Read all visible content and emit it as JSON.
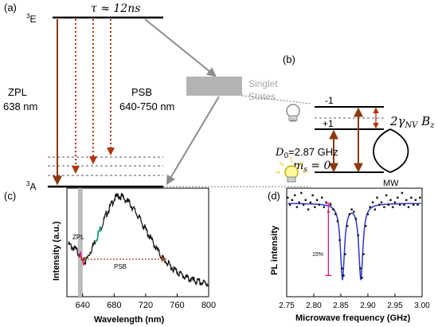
{
  "panel_a": {
    "label": "(a)",
    "level_excited": "3E",
    "level_ground": "3A",
    "tau": "τ ≈ 12ns",
    "zpl_title": "ZPL",
    "zpl_value": "638 nm",
    "psb_title": "PSB",
    "psb_value": "640-750 nm",
    "singlet_line1": "Singlet",
    "singlet_line2": "States"
  },
  "panel_b": {
    "label": "(b)",
    "ms_minus": "-1",
    "ms_plus": "+1",
    "zeeman": "2γNV Bz",
    "d0": "D0=2.87 GHz",
    "ms0": "ms = 0",
    "mw": "MW"
  },
  "panel_c": {
    "label": "(c)",
    "ylabel": "Intensity (a.u.)",
    "xlabel": "Wavelength (nm)",
    "zpl_tag": "ZPL",
    "psb_tag": "PSB",
    "chart_data": {
      "type": "line",
      "x_ticks": [
        640,
        680,
        720,
        760,
        800
      ],
      "xlim": [
        620,
        800
      ],
      "ylabel": "Intensity (a.u.)",
      "xlabel": "Wavelength (nm)",
      "x": [
        622,
        630,
        636,
        638,
        640,
        645,
        650,
        660,
        670,
        680,
        685,
        690,
        700,
        710,
        720,
        730,
        740,
        750,
        760,
        770,
        780,
        790,
        800
      ],
      "y": [
        0.48,
        0.44,
        0.4,
        0.36,
        0.3,
        0.34,
        0.42,
        0.58,
        0.76,
        0.9,
        0.93,
        0.92,
        0.86,
        0.75,
        0.62,
        0.49,
        0.37,
        0.29,
        0.23,
        0.18,
        0.15,
        0.13,
        0.12
      ]
    }
  },
  "panel_d": {
    "label": "(d)",
    "ylabel": "PL intensity",
    "xlabel": "Microwave frequency (GHz)",
    "contrast": "15%",
    "chart_data": {
      "type": "scatter",
      "x_ticks": [
        "2.75",
        "2.80",
        "2.85",
        "2.90",
        "2.95",
        "3.00"
      ],
      "xlim": [
        2.75,
        3.0
      ],
      "ylim": [
        0.8,
        1.03
      ],
      "ylabel": "PL intensity",
      "xlabel": "Microwave frequency (GHz)",
      "dips": [
        2.853,
        2.887
      ],
      "points": [
        [
          2.752,
          1.01
        ],
        [
          2.756,
          0.995
        ],
        [
          2.76,
          1.005
        ],
        [
          2.765,
          1.015
        ],
        [
          2.769,
          0.99
        ],
        [
          2.773,
          1.0
        ],
        [
          2.777,
          1.02
        ],
        [
          2.781,
          0.995
        ],
        [
          2.785,
          1.005
        ],
        [
          2.79,
          0.985
        ],
        [
          2.794,
          1.0
        ],
        [
          2.798,
          1.015
        ],
        [
          2.802,
          0.99
        ],
        [
          2.806,
          1.005
        ],
        [
          2.81,
          0.995
        ],
        [
          2.815,
          1.01
        ],
        [
          2.819,
          0.99
        ],
        [
          2.823,
          1.0
        ],
        [
          2.827,
          0.98
        ],
        [
          2.831,
          0.995
        ],
        [
          2.836,
          0.985
        ],
        [
          2.84,
          0.975
        ],
        [
          2.844,
          0.96
        ],
        [
          2.848,
          0.92
        ],
        [
          2.852,
          0.86
        ],
        [
          2.855,
          0.845
        ],
        [
          2.858,
          0.89
        ],
        [
          2.862,
          0.95
        ],
        [
          2.866,
          0.975
        ],
        [
          2.87,
          0.985
        ],
        [
          2.874,
          0.98
        ],
        [
          2.878,
          0.965
        ],
        [
          2.882,
          0.93
        ],
        [
          2.886,
          0.86
        ],
        [
          2.889,
          0.84
        ],
        [
          2.892,
          0.89
        ],
        [
          2.896,
          0.95
        ],
        [
          2.9,
          0.975
        ],
        [
          2.904,
          0.99
        ],
        [
          2.909,
          1.0
        ],
        [
          2.913,
          0.985
        ],
        [
          2.917,
          1.01
        ],
        [
          2.921,
          0.995
        ],
        [
          2.925,
          1.0
        ],
        [
          2.93,
          0.99
        ],
        [
          2.934,
          1.015
        ],
        [
          2.938,
          0.995
        ],
        [
          2.942,
          1.005
        ],
        [
          2.946,
          0.99
        ],
        [
          2.95,
          1.0
        ],
        [
          2.955,
          1.01
        ],
        [
          2.959,
          0.995
        ],
        [
          2.963,
          1.02
        ],
        [
          2.967,
          0.995
        ],
        [
          2.971,
          1.005
        ],
        [
          2.975,
          0.99
        ],
        [
          2.98,
          1.01
        ],
        [
          2.984,
          0.995
        ],
        [
          2.988,
          1.005
        ],
        [
          2.992,
          0.995
        ],
        [
          2.996,
          1.01
        ]
      ]
    }
  },
  "colors": {
    "brown": "#8b3a0e",
    "dotted_orange": "#a0461a",
    "gray": "#a6a6a6",
    "fit_blue": "#2b36c8",
    "magenta": "#e0197d",
    "green": "#1aa36a"
  }
}
